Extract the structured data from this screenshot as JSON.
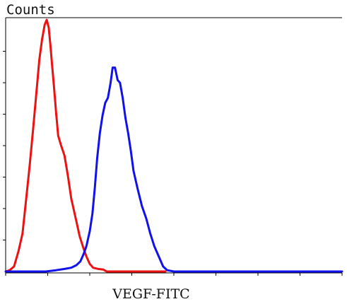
{
  "chart_data": {
    "type": "line",
    "title": "",
    "ylabel": "Counts",
    "xlabel": "VEGF-FITC",
    "xlim": [
      0,
      1000
    ],
    "ylim": [
      0,
      100
    ],
    "ticks": {
      "x": [
        0,
        125,
        250,
        375,
        500,
        625,
        750,
        875,
        1000
      ],
      "y": [
        0,
        12.5,
        25,
        37.5,
        50,
        62.5,
        75,
        87.5,
        100
      ]
    },
    "grid": false,
    "legend": "none",
    "series": [
      {
        "color": "#ee1111",
        "x": [
          0,
          12,
          25,
          38,
          50,
          62,
          72,
          82,
          92,
          100,
          108,
          116,
          122,
          128,
          133,
          138,
          144,
          150,
          156,
          165,
          175,
          185,
          195,
          210,
          220,
          232,
          240,
          250,
          260,
          275,
          290,
          300,
          330,
          400,
          475
        ],
        "y": [
          0,
          0.5,
          2,
          8,
          15,
          30,
          43,
          57,
          72,
          84,
          92,
          98,
          100,
          97,
          90,
          82,
          73,
          63,
          54,
          50,
          46,
          38,
          29,
          20,
          14,
          9,
          6,
          3,
          1.5,
          1,
          0.8,
          0,
          0,
          0,
          0
        ]
      },
      {
        "color": "#1111ee",
        "x": [
          0,
          80,
          120,
          150,
          175,
          195,
          210,
          222,
          232,
          240,
          250,
          258,
          265,
          272,
          280,
          288,
          296,
          304,
          312,
          318,
          325,
          333,
          340,
          348,
          356,
          364,
          372,
          380,
          392,
          405,
          418,
          430,
          442,
          455,
          468,
          480,
          500,
          600,
          750,
          1000
        ],
        "y": [
          0,
          0,
          0,
          0.5,
          1,
          1.5,
          2.5,
          4,
          7,
          10,
          16,
          23,
          33,
          45,
          55,
          62,
          67,
          69,
          75,
          81,
          81,
          76,
          75,
          69,
          61,
          55,
          48,
          40,
          33,
          26,
          21,
          15,
          10,
          6,
          2,
          0.5,
          0,
          0,
          0,
          0
        ]
      }
    ]
  }
}
